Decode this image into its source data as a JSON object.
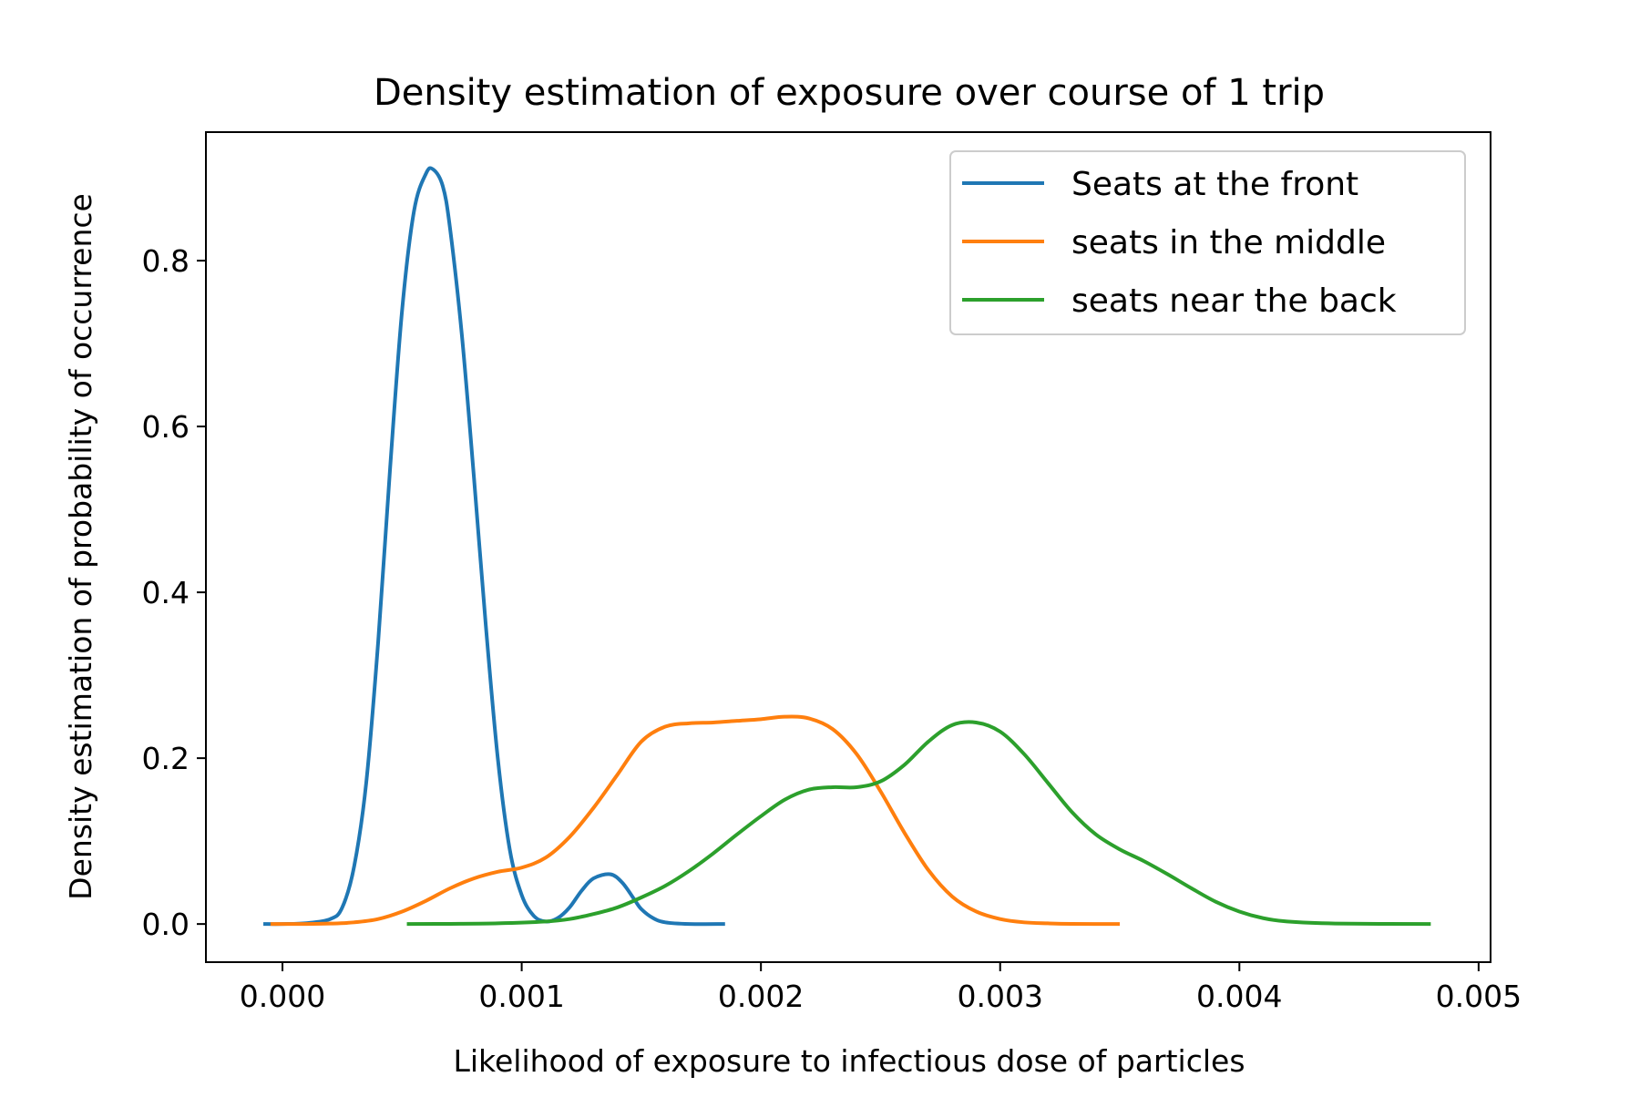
{
  "chart_data": {
    "type": "line",
    "title": "Density estimation of exposure over course of 1 trip",
    "xlabel": "Likelihood of exposure to infectious dose of particles",
    "ylabel": "Density estimation of probability of occurrence",
    "xlim": [
      -0.00032,
      0.00505
    ],
    "ylim": [
      -0.046,
      0.955
    ],
    "xticks": [
      0.0,
      0.001,
      0.002,
      0.003,
      0.004,
      0.005
    ],
    "xtick_labels": [
      "0.000",
      "0.001",
      "0.002",
      "0.003",
      "0.004",
      "0.005"
    ],
    "yticks": [
      0.0,
      0.2,
      0.4,
      0.6,
      0.8
    ],
    "ytick_labels": [
      "0.0",
      "0.2",
      "0.4",
      "0.6",
      "0.8"
    ],
    "grid": false,
    "legend": "top-right",
    "series": [
      {
        "name": "Seats at the front",
        "color": "#1f77b4",
        "x": [
          -8e-05,
          0.0,
          0.0001,
          0.0002,
          0.00025,
          0.0003,
          0.00035,
          0.0004,
          0.00045,
          0.0005,
          0.00055,
          0.0006,
          0.00063,
          0.00067,
          0.0007,
          0.00075,
          0.0008,
          0.00085,
          0.0009,
          0.00095,
          0.001,
          0.00105,
          0.0011,
          0.00115,
          0.0012,
          0.00125,
          0.0013,
          0.00137,
          0.00142,
          0.00147,
          0.0015,
          0.00155,
          0.0016,
          0.0017,
          0.00185
        ],
        "y": [
          0.0,
          0.0,
          0.001,
          0.006,
          0.02,
          0.07,
          0.17,
          0.34,
          0.55,
          0.74,
          0.86,
          0.905,
          0.91,
          0.89,
          0.84,
          0.71,
          0.54,
          0.36,
          0.2,
          0.09,
          0.035,
          0.01,
          0.003,
          0.007,
          0.02,
          0.04,
          0.055,
          0.06,
          0.05,
          0.03,
          0.018,
          0.007,
          0.002,
          0.0,
          0.0
        ]
      },
      {
        "name": "seats in the middle",
        "color": "#ff7f0e",
        "x": [
          -5e-05,
          0.0001,
          0.0002,
          0.0003,
          0.0004,
          0.0005,
          0.0006,
          0.0007,
          0.0008,
          0.0009,
          0.001,
          0.0011,
          0.0012,
          0.0013,
          0.0014,
          0.0015,
          0.0016,
          0.0017,
          0.0018,
          0.0019,
          0.002,
          0.0021,
          0.0022,
          0.0023,
          0.0024,
          0.0025,
          0.0026,
          0.0027,
          0.0028,
          0.0029,
          0.003,
          0.0031,
          0.0032,
          0.0033,
          0.0035
        ],
        "y": [
          0.0,
          0.0,
          0.0005,
          0.002,
          0.006,
          0.015,
          0.028,
          0.043,
          0.055,
          0.063,
          0.068,
          0.08,
          0.105,
          0.14,
          0.18,
          0.22,
          0.238,
          0.242,
          0.243,
          0.245,
          0.247,
          0.25,
          0.248,
          0.235,
          0.205,
          0.16,
          0.11,
          0.065,
          0.033,
          0.015,
          0.006,
          0.002,
          0.0008,
          0.0002,
          0.0
        ]
      },
      {
        "name": "seats near the back",
        "color": "#2ca02c",
        "x": [
          0.00052,
          0.0007,
          0.0009,
          0.0011,
          0.0012,
          0.0013,
          0.0014,
          0.0015,
          0.0016,
          0.0017,
          0.0018,
          0.0019,
          0.002,
          0.0021,
          0.0022,
          0.0023,
          0.0024,
          0.0025,
          0.0026,
          0.0027,
          0.0028,
          0.0029,
          0.003,
          0.0031,
          0.0032,
          0.0033,
          0.0034,
          0.0035,
          0.0036,
          0.0037,
          0.0038,
          0.0039,
          0.004,
          0.0041,
          0.0042,
          0.0044,
          0.0048
        ],
        "y": [
          0.0,
          0.0002,
          0.0008,
          0.003,
          0.006,
          0.012,
          0.02,
          0.032,
          0.046,
          0.064,
          0.085,
          0.108,
          0.13,
          0.15,
          0.162,
          0.165,
          0.165,
          0.172,
          0.192,
          0.22,
          0.24,
          0.243,
          0.232,
          0.205,
          0.17,
          0.135,
          0.108,
          0.09,
          0.076,
          0.06,
          0.043,
          0.027,
          0.015,
          0.007,
          0.003,
          0.0006,
          0.0
        ]
      }
    ]
  }
}
